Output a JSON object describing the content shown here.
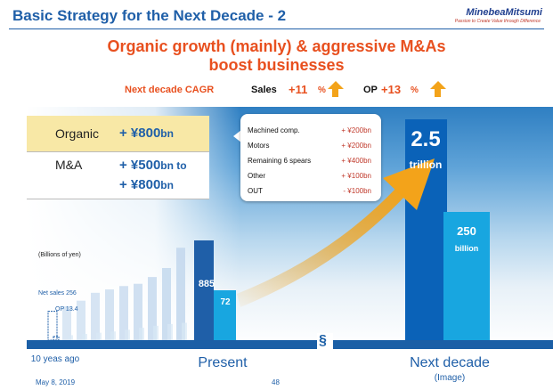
{
  "header": {
    "title": "Basic Strategy for the Next Decade - 2",
    "logo": "MinebeaMitsumi",
    "logo_tagline": "Passion to Create Value through Difference"
  },
  "headline": {
    "line1": "Organic growth (mainly) & aggressive M&As",
    "line2": "boost businesses"
  },
  "cagr": {
    "label": "Next decade CAGR",
    "sales_key": "Sales",
    "sales_value": "+11",
    "sales_pct": "%",
    "op_key": "OP",
    "op_value": "+13",
    "op_pct": "%"
  },
  "breakdown": {
    "organic_label": "Organic",
    "organic_value": "+ ¥800",
    "organic_unit": "bn",
    "ma_label": "M&A",
    "ma_value1": "+ ¥500",
    "ma_unit1": "bn to",
    "ma_value2": "+ ¥800",
    "ma_unit2": "bn"
  },
  "organic_detail": [
    {
      "label": "Machined comp.",
      "value": "+ ¥200bn"
    },
    {
      "label": "Motors",
      "value": "+ ¥200bn"
    },
    {
      "label": "Remaining 6 spears",
      "value": "+ ¥400bn"
    },
    {
      "label": "Other",
      "value": "+ ¥100bn"
    },
    {
      "label": "OUT",
      "value": "- ¥100bn"
    }
  ],
  "chart_labels": {
    "units": "(Billions of yen)",
    "net_sales_start": "Net sales  256",
    "op_start": "OP  13.4",
    "present_sales": "885",
    "present_op": "72",
    "next_sales_num": "2.5",
    "next_sales_unit": "trillion",
    "next_op_num": "250",
    "next_op_unit": "billion",
    "x_start": "10 yeas ago",
    "x_present": "Present",
    "x_next": "Next decade",
    "x_next_sub": "(Image)"
  },
  "footer": {
    "date": "May 8, 2019",
    "page": "48"
  },
  "colors": {
    "accent_orange": "#e8501f",
    "brand_blue": "#1f5fa8",
    "bar_history": "#c5d9ee",
    "bar_present_sales": "#1f5fa8",
    "bar_present_op": "#18a6e0",
    "bar_next_sales": "#0a62b8",
    "bar_next_op": "#18a6e0",
    "arrow": "#f3a31a"
  },
  "chart_data": {
    "type": "bar",
    "ylabel": "(Billions of yen)",
    "history_sales": [
      256,
      300,
      350,
      420,
      450,
      480,
      500,
      560,
      640,
      820,
      885
    ],
    "history_op": [
      13.4,
      20,
      25,
      30,
      35,
      42,
      50,
      58,
      65,
      70,
      72
    ],
    "present": {
      "net_sales": 885,
      "op": 72
    },
    "next_decade": {
      "net_sales": 2500,
      "op": 250
    },
    "cagr": {
      "sales_pct": 11,
      "op_pct": 13
    }
  }
}
